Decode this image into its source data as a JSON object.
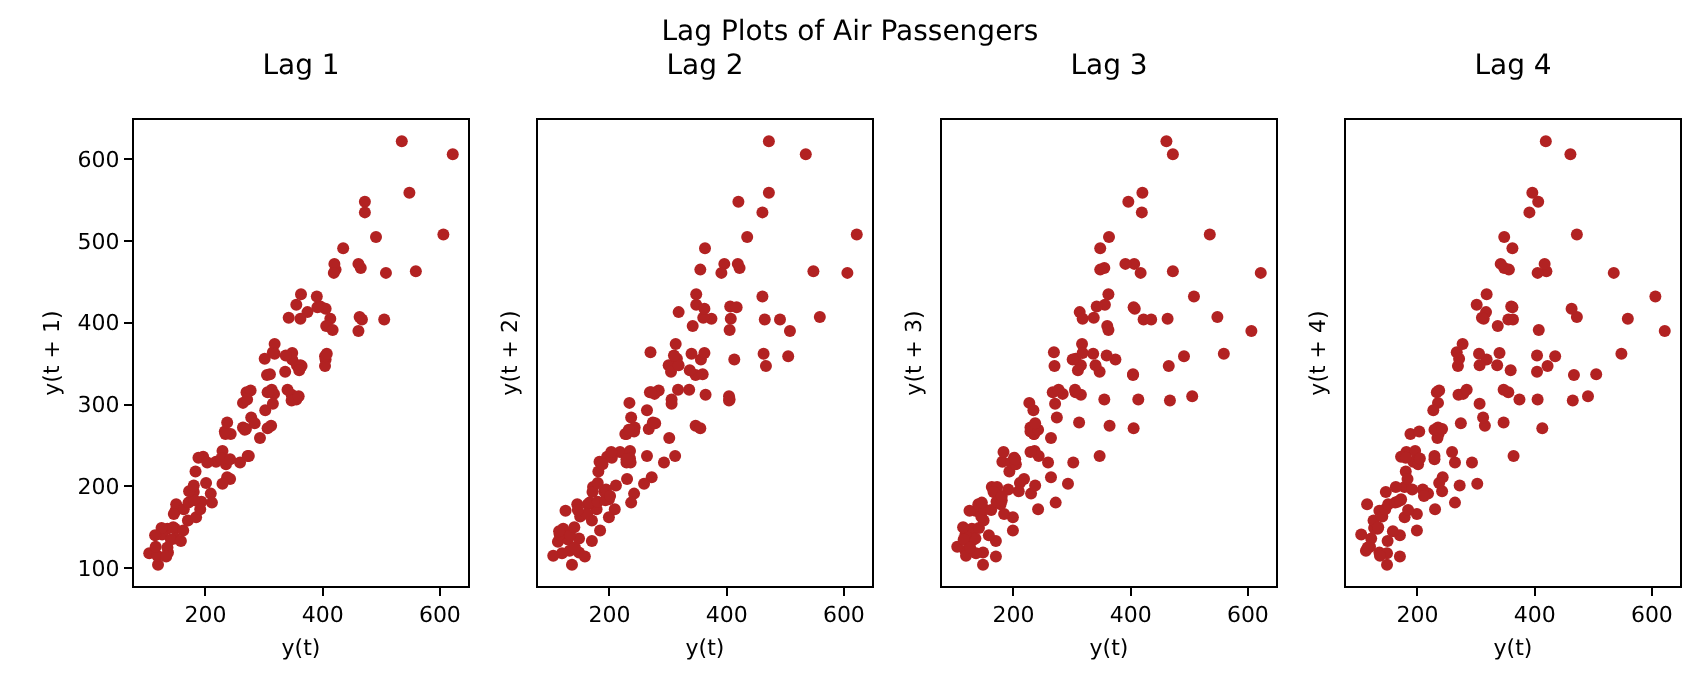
{
  "chart_data": [
    {
      "type": "scatter",
      "title": "Lag 1",
      "annotations": [
        "Lag Plots of Air Passengers"
      ],
      "xlabel": "y(t)",
      "ylabel": "y(t + 1)",
      "color": "#b22222",
      "marker": "circle",
      "grid": false,
      "xlim": [
        78,
        648
      ],
      "ylim": [
        78,
        648
      ],
      "xticks": [
        200,
        400,
        600
      ],
      "yticks": [
        100,
        200,
        300,
        400,
        500,
        600
      ],
      "x": [
        null,
        null,
        null,
        null,
        null,
        135,
        148,
        148,
        136,
        119,
        104,
        118,
        115,
        126,
        141,
        135,
        125,
        149,
        null,
        170,
        158,
        133,
        114,
        null,
        145,
        150,
        null,
        163,
        null,
        null,
        null,
        null,
        184,
        162,
        146,
        null,
        171,
        180,
        193,
        181,
        183,
        218,
        null,
        242,
        209,
        191,
        172,
        null,
        null,
        196,
        null,
        null,
        229,
        243,
        264,
        272,
        237,
        211,
        180,
        201,
        null,
        188,
        235,
        227,
        234,
        264,
        302,
        293,
        259,
        229,
        203,
        null,
        242,
        233,
        267,
        269,
        270,
        315,
        364,
        347,
        312,
        274,
        237,
        278,
        284,
        277,
        317,
        313,
        318,
        374,
        413,
        405,
        355,
        306,
        271,
        306,
        315,
        301,
        356,
        348,
        355,
        422,
        465,
        467,
        404,
        347,
        305,
        336,
        340,
        318,
        362,
        348,
        363,
        435,
        491,
        505,
        404,
        359,
        310,
        337,
        360,
        342,
        406,
        396,
        420,
        472,
        548,
        559,
        463,
        407,
        362,
        405,
        417,
        391,
        419,
        461,
        472,
        535,
        622,
        606,
        508,
        461,
        390
      ],
      "values": [
        null,
        null,
        null,
        null,
        null,
        148,
        148,
        136,
        119,
        104,
        118,
        115,
        126,
        141,
        135,
        125,
        149,
        170,
        null,
        158,
        133,
        114,
        140,
        null,
        150,
        178,
        null,
        172,
        null,
        null,
        null,
        null,
        162,
        146,
        166,
        null,
        180,
        193,
        181,
        183,
        218,
        230,
        null,
        209,
        191,
        172,
        194,
        null,
        null,
        236,
        null,
        null,
        243,
        264,
        272,
        237,
        211,
        180,
        201,
        204,
        null,
        235,
        227,
        234,
        264,
        302,
        293,
        259,
        229,
        203,
        229,
        null,
        233,
        267,
        269,
        270,
        315,
        364,
        347,
        312,
        274,
        237,
        278,
        284,
        277,
        317,
        313,
        318,
        374,
        413,
        405,
        355,
        306,
        271,
        306,
        315,
        301,
        356,
        348,
        355,
        422,
        465,
        467,
        404,
        347,
        305,
        336,
        340,
        318,
        362,
        348,
        363,
        435,
        491,
        505,
        404,
        359,
        310,
        337,
        360,
        342,
        406,
        396,
        420,
        472,
        548,
        559,
        463,
        407,
        362,
        405,
        417,
        391,
        419,
        461,
        472,
        535,
        622,
        606,
        508,
        461,
        390,
        432
      ]
    },
    {
      "type": "scatter",
      "title": "Lag 2",
      "xlabel": "y(t)",
      "ylabel": "y(t + 2)",
      "color": "#b22222",
      "marker": "circle",
      "grid": false,
      "tick_labels": "x",
      "xlim": [
        78,
        648
      ],
      "ylim": [
        78,
        648
      ],
      "xticks": [
        200,
        400,
        600
      ],
      "yticks": [
        100,
        200,
        300,
        400,
        500,
        600
      ],
      "x": [
        112,
        null,
        132,
        129,
        121,
        null,
        148,
        148,
        136,
        119,
        104,
        null,
        115,
        null,
        141,
        null,
        125,
        null,
        170,
        170,
        158,
        133,
        114,
        140,
        145,
        150,
        178,
        163,
        172,
        null,
        199,
        199,
        184,
        162,
        146,
        166,
        171,
        180,
        193,
        181,
        183,
        218,
        230,
        242,
        209,
        191,
        null,
        194,
        196,
        null,
        236,
        235,
        229,
        243,
        264,
        272,
        237,
        211,
        180,
        201,
        204,
        188,
        235,
        227,
        234,
        264,
        302,
        293,
        259,
        229,
        203,
        229,
        242,
        233,
        267,
        269,
        270,
        null,
        364,
        347,
        312,
        274,
        237,
        278,
        284,
        277,
        317,
        313,
        318,
        374,
        413,
        405,
        355,
        306,
        271,
        306,
        315,
        301,
        356,
        348,
        355,
        422,
        465,
        467,
        404,
        347,
        305,
        336,
        340,
        318,
        362,
        348,
        363,
        435,
        491,
        505,
        404,
        359,
        310,
        337,
        360,
        342,
        406,
        396,
        420,
        472,
        548,
        559,
        463,
        407,
        362,
        405,
        417,
        391,
        419,
        461,
        472,
        535,
        622,
        606,
        508,
        461
      ],
      "values": [
        132,
        null,
        121,
        135,
        148,
        null,
        136,
        119,
        104,
        118,
        115,
        null,
        141,
        null,
        125,
        null,
        170,
        null,
        158,
        133,
        114,
        140,
        145,
        150,
        178,
        163,
        172,
        178,
        199,
        null,
        184,
        162,
        146,
        166,
        171,
        180,
        193,
        181,
        183,
        218,
        230,
        242,
        209,
        191,
        172,
        194,
        null,
        196,
        236,
        null,
        229,
        243,
        264,
        272,
        237,
        211,
        180,
        201,
        204,
        188,
        235,
        227,
        234,
        264,
        302,
        293,
        259,
        229,
        203,
        229,
        242,
        233,
        267,
        269,
        270,
        315,
        364,
        null,
        312,
        274,
        237,
        278,
        284,
        277,
        317,
        313,
        318,
        374,
        413,
        405,
        355,
        306,
        271,
        306,
        315,
        301,
        356,
        348,
        355,
        422,
        465,
        467,
        404,
        347,
        305,
        336,
        340,
        318,
        362,
        348,
        363,
        435,
        491,
        505,
        404,
        359,
        310,
        337,
        360,
        342,
        406,
        396,
        420,
        472,
        548,
        559,
        463,
        407,
        362,
        405,
        417,
        391,
        419,
        461,
        472,
        535,
        622,
        606,
        508,
        461,
        390,
        432
      ]
    },
    {
      "type": "scatter",
      "title": "Lag 3",
      "xlabel": "y(t)",
      "ylabel": "y(t + 3)",
      "color": "#b22222",
      "marker": "circle",
      "grid": false,
      "tick_labels": "x",
      "xlim": [
        78,
        648
      ],
      "ylim": [
        78,
        648
      ],
      "xticks": [
        200,
        400,
        600
      ],
      "yticks": [
        100,
        200,
        300,
        400,
        500,
        600
      ],
      "x": [
        null,
        118,
        132,
        129,
        null,
        135,
        148,
        148,
        136,
        119,
        104,
        118,
        115,
        126,
        141,
        135,
        125,
        149,
        170,
        170,
        158,
        null,
        114,
        140,
        145,
        150,
        178,
        163,
        172,
        null,
        199,
        199,
        184,
        162,
        146,
        166,
        171,
        180,
        193,
        181,
        183,
        218,
        230,
        242,
        209,
        191,
        null,
        null,
        null,
        196,
        236,
        235,
        229,
        243,
        264,
        272,
        237,
        211,
        180,
        201,
        204,
        null,
        235,
        227,
        234,
        264,
        302,
        293,
        259,
        229,
        203,
        229,
        242,
        null,
        267,
        269,
        270,
        315,
        364,
        347,
        312,
        274,
        237,
        null,
        284,
        277,
        317,
        313,
        318,
        374,
        413,
        405,
        355,
        306,
        271,
        306,
        315,
        301,
        356,
        348,
        355,
        422,
        465,
        467,
        404,
        347,
        305,
        336,
        340,
        318,
        362,
        348,
        363,
        435,
        491,
        505,
        404,
        359,
        310,
        337,
        360,
        342,
        406,
        396,
        420,
        472,
        548,
        559,
        463,
        407,
        362,
        405,
        417,
        391,
        419,
        461,
        472,
        535,
        622,
        606,
        508
      ],
      "values": [
        null,
        121,
        135,
        148,
        null,
        136,
        119,
        104,
        118,
        115,
        126,
        141,
        135,
        125,
        149,
        170,
        170,
        158,
        133,
        114,
        140,
        null,
        150,
        178,
        163,
        172,
        178,
        199,
        199,
        null,
        162,
        146,
        166,
        171,
        180,
        193,
        181,
        183,
        218,
        230,
        242,
        209,
        191,
        172,
        194,
        196,
        null,
        null,
        null,
        229,
        243,
        264,
        272,
        237,
        211,
        180,
        201,
        204,
        188,
        235,
        227,
        null,
        264,
        302,
        293,
        259,
        229,
        203,
        229,
        242,
        233,
        267,
        269,
        null,
        315,
        364,
        347,
        312,
        274,
        237,
        278,
        284,
        277,
        null,
        313,
        318,
        374,
        413,
        405,
        355,
        306,
        271,
        306,
        315,
        301,
        356,
        348,
        355,
        422,
        465,
        467,
        404,
        347,
        305,
        336,
        340,
        318,
        362,
        348,
        363,
        435,
        491,
        505,
        404,
        359,
        310,
        337,
        360,
        342,
        406,
        396,
        420,
        472,
        548,
        559,
        463,
        407,
        362,
        405,
        417,
        391,
        419,
        461,
        472,
        535,
        622,
        606,
        508,
        461,
        390,
        432
      ]
    },
    {
      "type": "scatter",
      "title": "Lag 4",
      "xlabel": "y(t)",
      "ylabel": "y(t + 4)",
      "color": "#b22222",
      "marker": "circle",
      "grid": false,
      "tick_labels": "x",
      "xlim": [
        78,
        648
      ],
      "ylim": [
        78,
        648
      ],
      "xticks": [
        200,
        400,
        600
      ],
      "yticks": [
        100,
        200,
        300,
        400,
        500,
        600
      ],
      "x": [
        112,
        null,
        132,
        null,
        121,
        135,
        148,
        148,
        136,
        119,
        104,
        null,
        115,
        126,
        null,
        135,
        125,
        149,
        170,
        170,
        158,
        133,
        114,
        140,
        145,
        150,
        178,
        163,
        172,
        178,
        199,
        199,
        184,
        162,
        146,
        166,
        171,
        180,
        193,
        181,
        183,
        218,
        230,
        242,
        209,
        191,
        172,
        null,
        null,
        196,
        236,
        235,
        229,
        243,
        264,
        272,
        237,
        211,
        180,
        201,
        204,
        188,
        235,
        227,
        234,
        264,
        302,
        293,
        259,
        229,
        203,
        229,
        242,
        233,
        267,
        269,
        270,
        315,
        364,
        347,
        312,
        274,
        237,
        278,
        284,
        277,
        317,
        313,
        318,
        374,
        413,
        405,
        355,
        306,
        271,
        306,
        null,
        301,
        356,
        348,
        355,
        422,
        465,
        467,
        404,
        347,
        305,
        336,
        340,
        318,
        362,
        348,
        363,
        435,
        491,
        505,
        404,
        359,
        310,
        337,
        360,
        342,
        406,
        396,
        420,
        472,
        548,
        559,
        463,
        407,
        362,
        405,
        417,
        391,
        419,
        461,
        472,
        535,
        622,
        606
      ],
      "values": [
        121,
        null,
        148,
        null,
        136,
        119,
        104,
        118,
        115,
        126,
        141,
        null,
        125,
        149,
        null,
        170,
        158,
        133,
        114,
        140,
        145,
        150,
        178,
        163,
        172,
        178,
        199,
        199,
        184,
        162,
        146,
        166,
        171,
        180,
        193,
        181,
        183,
        218,
        230,
        242,
        209,
        191,
        172,
        194,
        196,
        196,
        236,
        null,
        null,
        243,
        264,
        272,
        237,
        211,
        180,
        201,
        204,
        188,
        235,
        227,
        234,
        264,
        302,
        293,
        259,
        229,
        203,
        229,
        242,
        233,
        267,
        269,
        270,
        315,
        364,
        347,
        312,
        274,
        237,
        278,
        284,
        277,
        317,
        313,
        318,
        374,
        413,
        405,
        355,
        306,
        271,
        306,
        315,
        301,
        356,
        348,
        null,
        422,
        465,
        467,
        404,
        347,
        305,
        336,
        340,
        318,
        362,
        348,
        363,
        435,
        491,
        505,
        404,
        359,
        310,
        337,
        360,
        342,
        406,
        396,
        420,
        472,
        548,
        559,
        463,
        407,
        362,
        405,
        417,
        391,
        419,
        461,
        472,
        535,
        622,
        606,
        508,
        461,
        390,
        432
      ]
    }
  ]
}
